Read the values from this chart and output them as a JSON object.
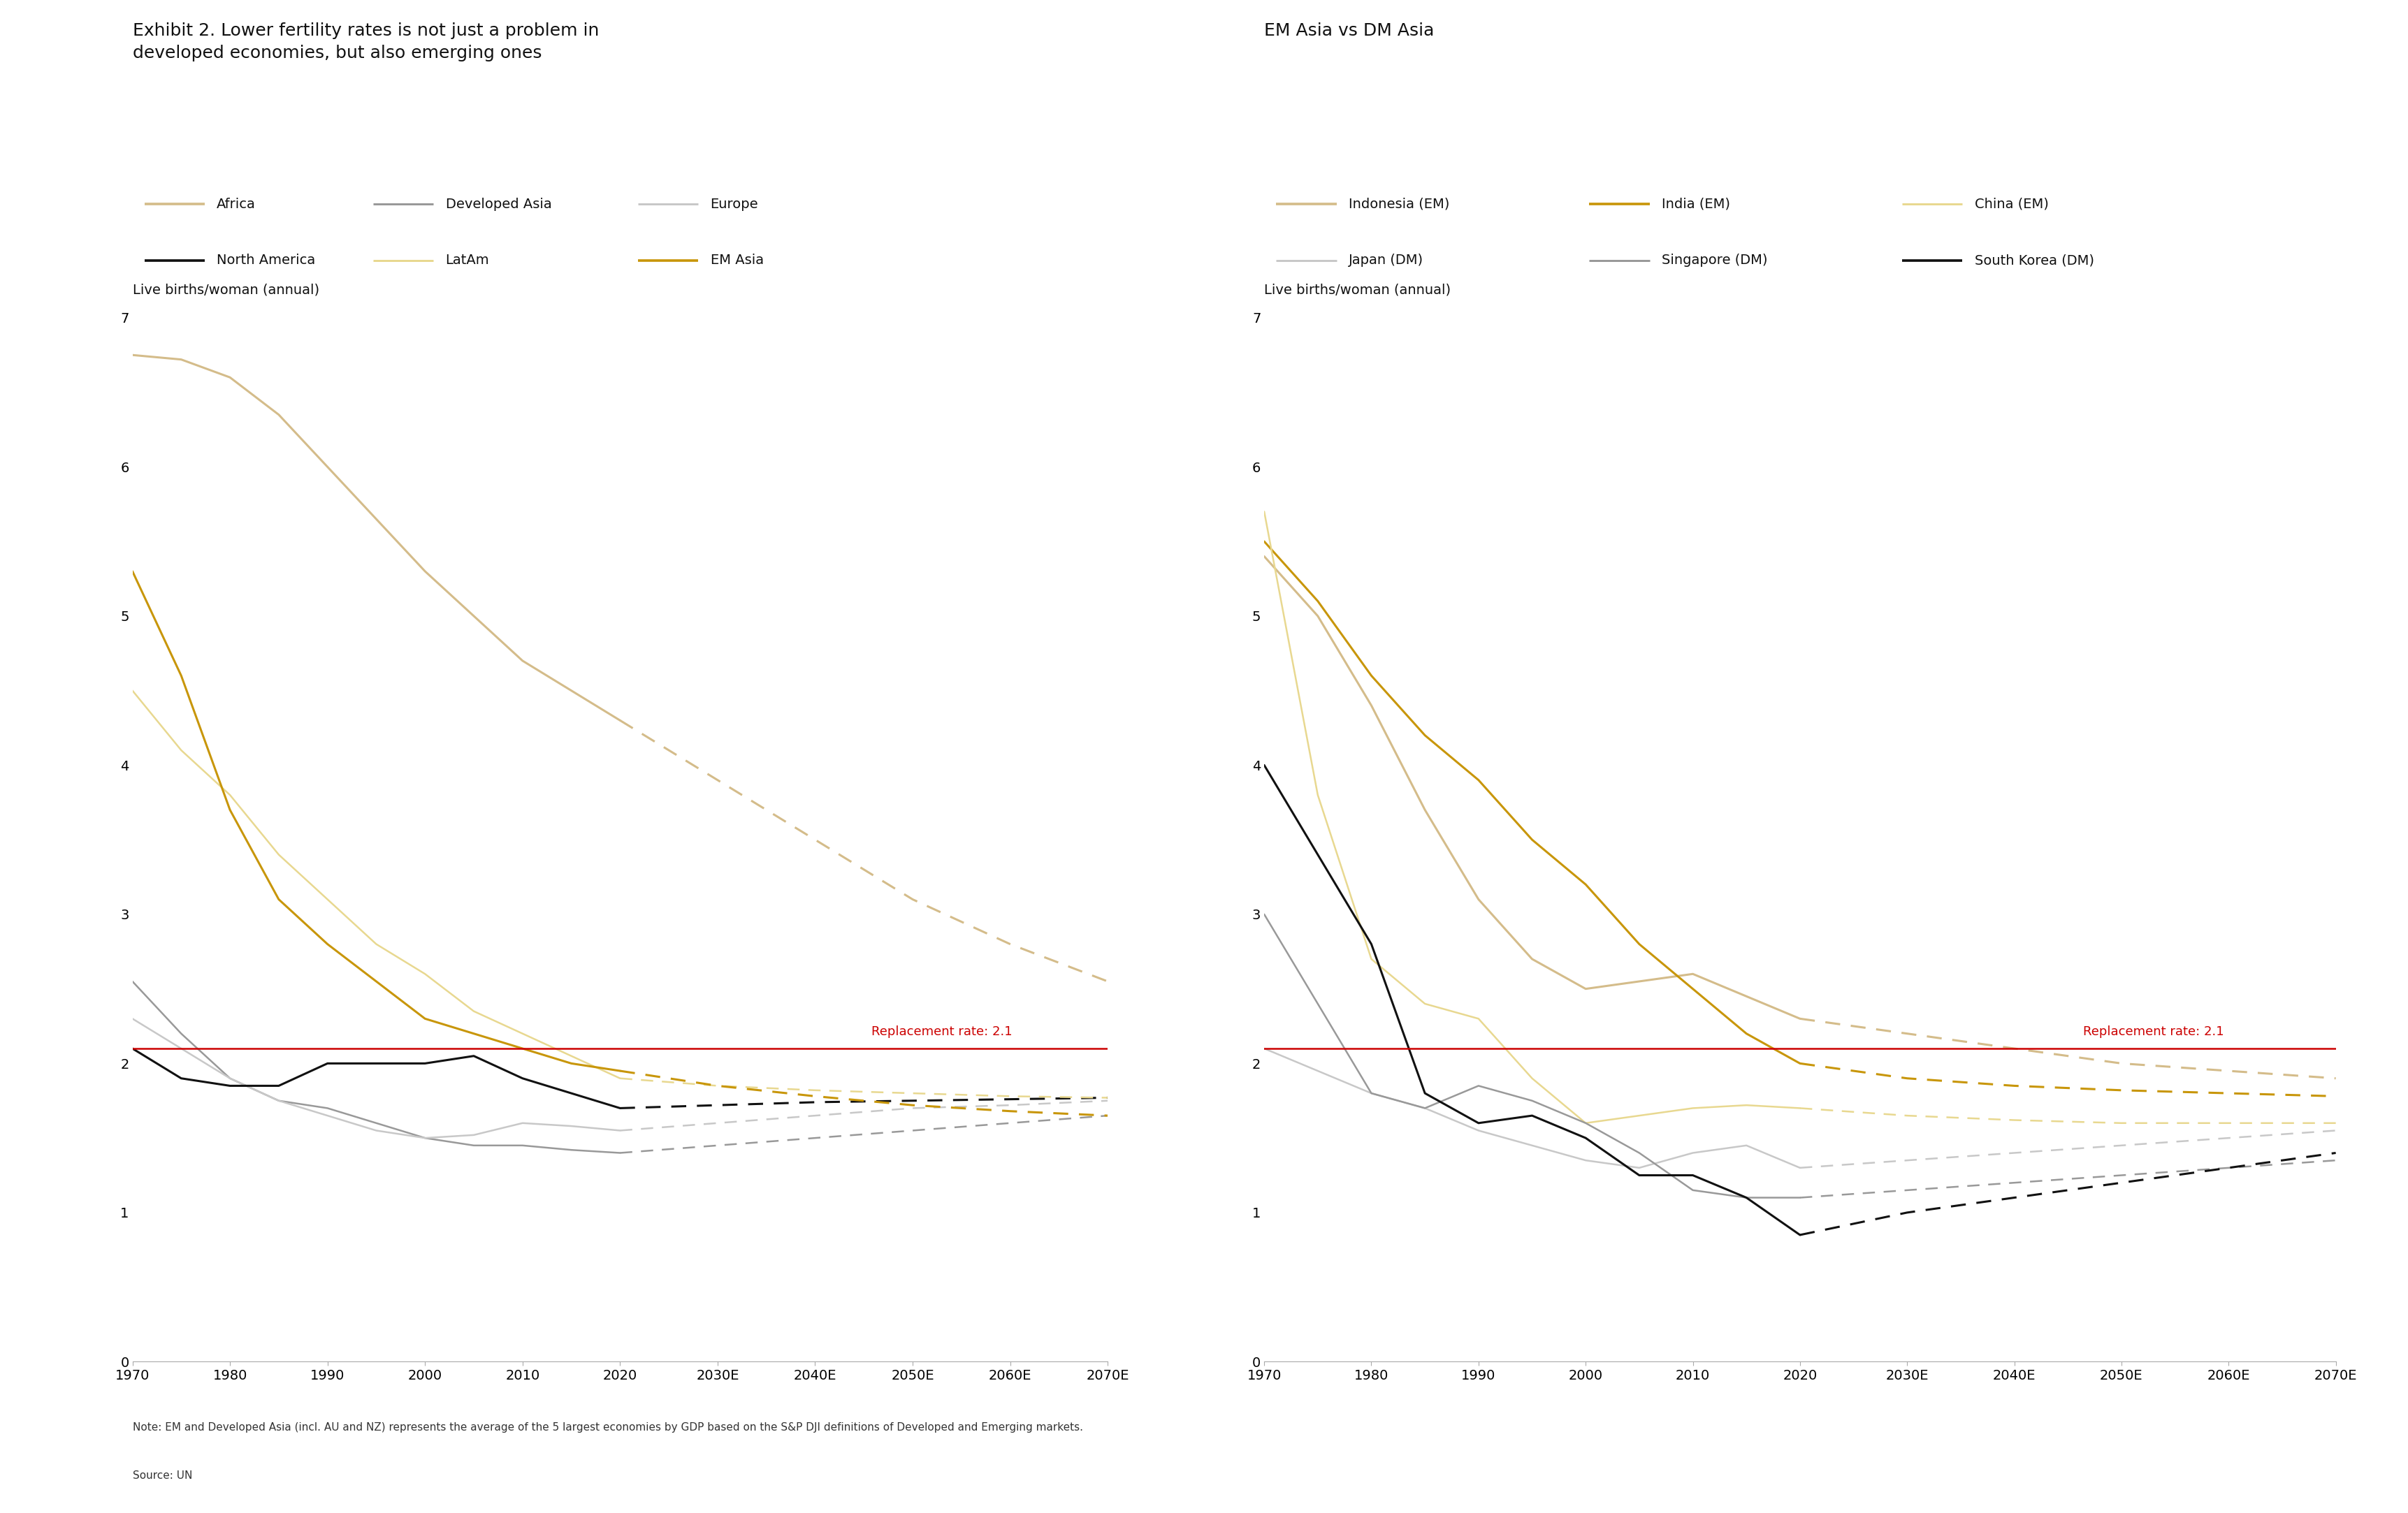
{
  "title_left": "Exhibit 2. Lower fertility rates is not just a problem in\ndeveloped economies, but also emerging ones",
  "title_right": "EM Asia vs DM Asia",
  "ylabel": "Live births/woman (annual)",
  "ylim": [
    0,
    7
  ],
  "replacement_rate": 2.1,
  "replacement_label": "Replacement rate: 2.1",
  "note": "Note: EM and Developed Asia (incl. AU and NZ) represents the average of the 5 largest economies by GDP based on the S&P DJI definitions of Developed and Emerging markets.",
  "source": "Source: UN",
  "x_historical": [
    1970,
    1975,
    1980,
    1985,
    1990,
    1995,
    2000,
    2005,
    2010,
    2015,
    2020
  ],
  "x_forecast": [
    2020,
    2030,
    2040,
    2050,
    2060,
    2070
  ],
  "left_series": {
    "Africa": {
      "color": "#d4bc8a",
      "lw": 2.2,
      "historical": [
        6.75,
        6.72,
        6.6,
        6.35,
        6.0,
        5.65,
        5.3,
        5.0,
        4.7,
        4.5,
        4.3
      ],
      "forecast": [
        4.3,
        3.9,
        3.5,
        3.1,
        2.8,
        2.55
      ]
    },
    "Developed Asia": {
      "color": "#999999",
      "lw": 1.8,
      "historical": [
        2.55,
        2.2,
        1.9,
        1.75,
        1.7,
        1.6,
        1.5,
        1.45,
        1.45,
        1.42,
        1.4
      ],
      "forecast": [
        1.4,
        1.45,
        1.5,
        1.55,
        1.6,
        1.65
      ]
    },
    "Europe": {
      "color": "#c8c8c8",
      "lw": 1.8,
      "historical": [
        2.3,
        2.1,
        1.9,
        1.75,
        1.65,
        1.55,
        1.5,
        1.52,
        1.6,
        1.58,
        1.55
      ],
      "forecast": [
        1.55,
        1.6,
        1.65,
        1.7,
        1.72,
        1.75
      ]
    },
    "North America": {
      "color": "#111111",
      "lw": 2.2,
      "historical": [
        2.1,
        1.9,
        1.85,
        1.85,
        2.0,
        2.0,
        2.0,
        2.05,
        1.9,
        1.8,
        1.7
      ],
      "forecast": [
        1.7,
        1.72,
        1.74,
        1.75,
        1.76,
        1.77
      ]
    },
    "LatAm": {
      "color": "#e8d890",
      "lw": 1.8,
      "historical": [
        4.5,
        4.1,
        3.8,
        3.4,
        3.1,
        2.8,
        2.6,
        2.35,
        2.2,
        2.05,
        1.9
      ],
      "forecast": [
        1.9,
        1.85,
        1.82,
        1.8,
        1.78,
        1.77
      ]
    },
    "EM Asia": {
      "color": "#c8960a",
      "lw": 2.2,
      "historical": [
        5.3,
        4.6,
        3.7,
        3.1,
        2.8,
        2.55,
        2.3,
        2.2,
        2.1,
        2.0,
        1.95
      ],
      "forecast": [
        1.95,
        1.85,
        1.78,
        1.72,
        1.68,
        1.65
      ]
    }
  },
  "right_series": {
    "Indonesia (EM)": {
      "color": "#d4bc8a",
      "lw": 2.2,
      "historical": [
        5.4,
        5.0,
        4.4,
        3.7,
        3.1,
        2.7,
        2.5,
        2.55,
        2.6,
        2.45,
        2.3
      ],
      "forecast": [
        2.3,
        2.2,
        2.1,
        2.0,
        1.95,
        1.9
      ]
    },
    "India (EM)": {
      "color": "#c8960a",
      "lw": 2.2,
      "historical": [
        5.5,
        5.1,
        4.6,
        4.2,
        3.9,
        3.5,
        3.2,
        2.8,
        2.5,
        2.2,
        2.0
      ],
      "forecast": [
        2.0,
        1.9,
        1.85,
        1.82,
        1.8,
        1.78
      ]
    },
    "China (EM)": {
      "color": "#e8d890",
      "lw": 1.8,
      "historical": [
        5.7,
        3.8,
        2.7,
        2.4,
        2.3,
        1.9,
        1.6,
        1.65,
        1.7,
        1.72,
        1.7
      ],
      "forecast": [
        1.7,
        1.65,
        1.62,
        1.6,
        1.6,
        1.6
      ]
    },
    "Japan (DM)": {
      "color": "#c8c8c8",
      "lw": 1.8,
      "historical": [
        2.1,
        1.95,
        1.8,
        1.7,
        1.55,
        1.45,
        1.35,
        1.3,
        1.4,
        1.45,
        1.3
      ],
      "forecast": [
        1.3,
        1.35,
        1.4,
        1.45,
        1.5,
        1.55
      ]
    },
    "Singapore (DM)": {
      "color": "#999999",
      "lw": 1.8,
      "historical": [
        3.0,
        2.4,
        1.8,
        1.7,
        1.85,
        1.75,
        1.6,
        1.4,
        1.15,
        1.1,
        1.1
      ],
      "forecast": [
        1.1,
        1.15,
        1.2,
        1.25,
        1.3,
        1.35
      ]
    },
    "South Korea (DM)": {
      "color": "#111111",
      "lw": 2.2,
      "historical": [
        4.0,
        3.4,
        2.8,
        1.8,
        1.6,
        1.65,
        1.5,
        1.25,
        1.25,
        1.1,
        0.85
      ],
      "forecast": [
        0.85,
        1.0,
        1.1,
        1.2,
        1.3,
        1.4
      ]
    }
  },
  "left_legend": [
    {
      "label": "Africa",
      "color": "#d4bc8a",
      "lw": 2.2
    },
    {
      "label": "Developed Asia",
      "color": "#999999",
      "lw": 1.8
    },
    {
      "label": "Europe",
      "color": "#c8c8c8",
      "lw": 1.8
    },
    {
      "label": "North America",
      "color": "#111111",
      "lw": 2.2
    },
    {
      "label": "LatAm",
      "color": "#e8d890",
      "lw": 1.8
    },
    {
      "label": "EM Asia",
      "color": "#c8960a",
      "lw": 2.2
    }
  ],
  "right_legend": [
    {
      "label": "Indonesia (EM)",
      "color": "#d4bc8a",
      "lw": 2.2
    },
    {
      "label": "India (EM)",
      "color": "#c8960a",
      "lw": 2.2
    },
    {
      "label": "China (EM)",
      "color": "#e8d890",
      "lw": 1.8
    },
    {
      "label": "Japan (DM)",
      "color": "#c8c8c8",
      "lw": 1.8
    },
    {
      "label": "Singapore (DM)",
      "color": "#999999",
      "lw": 1.8
    },
    {
      "label": "South Korea (DM)",
      "color": "#111111",
      "lw": 2.2
    }
  ]
}
